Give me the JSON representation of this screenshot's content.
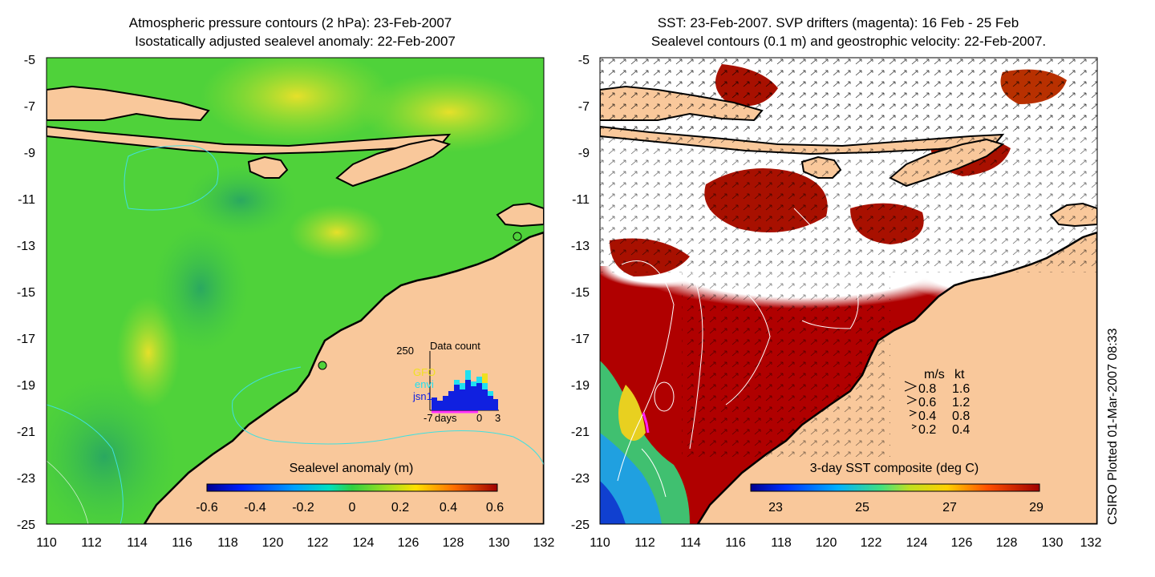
{
  "left_panel": {
    "title_line1": "Atmospheric pressure contours (2 hPa): 23-Feb-2007",
    "title_line2": "Isostatically adjusted sealevel anomaly: 22-Feb-2007",
    "colorbar_label": "Sealevel anomaly (m)",
    "colorbar_ticks": [
      "-0.6",
      "-0.4",
      "-0.2",
      "0",
      "0.2",
      "0.4",
      "0.6"
    ],
    "inset": {
      "y_label": "250",
      "title": "Data count",
      "legend": [
        {
          "label": "GFO",
          "color": "#f0e020"
        },
        {
          "label": "envi",
          "color": "#20e0f0"
        },
        {
          "label": "jsn1",
          "color": "#1020e0"
        }
      ],
      "x_left": "-7",
      "x_unit": "days",
      "x_mid": "0",
      "x_right": "3"
    }
  },
  "right_panel": {
    "title_line1": "SST: 23-Feb-2007. SVP drifters (magenta): 16 Feb - 25 Feb",
    "title_line2": "Sealevel contours (0.1 m) and geostrophic velocity: 22-Feb-2007.",
    "colorbar_label": "3-day SST composite (deg C)",
    "colorbar_ticks": [
      "23",
      "25",
      "27",
      "29"
    ],
    "speed_legend": {
      "header_ms": "m/s",
      "header_kt": "kt",
      "rows": [
        {
          "ms": "0.8",
          "kt": "1.6"
        },
        {
          "ms": "0.6",
          "kt": "1.2"
        },
        {
          "ms": "0.4",
          "kt": "0.8"
        },
        {
          "ms": "0.2",
          "kt": "0.4"
        }
      ]
    }
  },
  "axes": {
    "x_ticks": [
      "110",
      "112",
      "114",
      "116",
      "118",
      "120",
      "122",
      "124",
      "126",
      "128",
      "130",
      "132"
    ],
    "y_ticks": [
      "-5",
      "-7",
      "-9",
      "-11",
      "-13",
      "-15",
      "-17",
      "-19",
      "-21",
      "-23",
      "-25"
    ]
  },
  "side_caption": "CSIRO Plotted 01-Mar-2007 08:33",
  "colors": {
    "land": "#f9c89b",
    "coast": "#000000",
    "sealevel_ocean": "#4fd23a",
    "sst_warm": "#b00000",
    "sst_cloud": "#ffffff"
  }
}
